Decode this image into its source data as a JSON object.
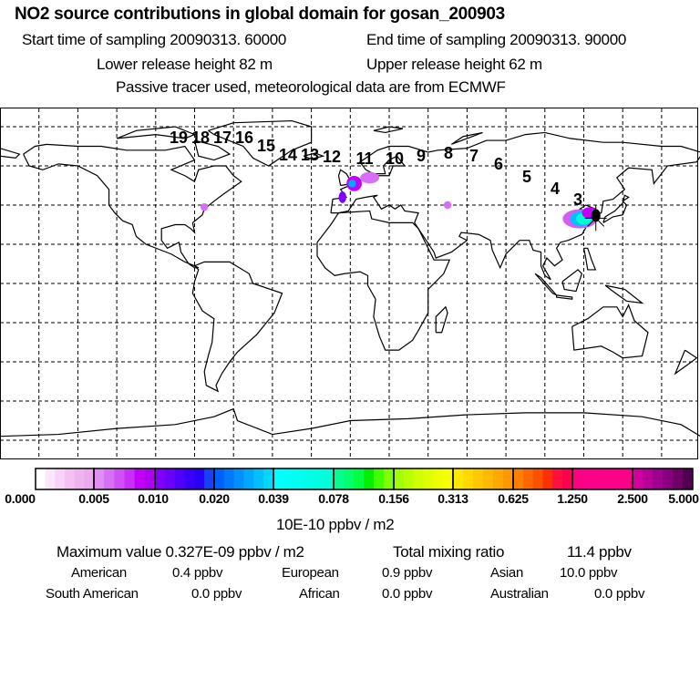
{
  "header": {
    "title": "NO2 source contributions in global domain for gosan_200903",
    "start_time": "Start time of sampling 20090313. 60000",
    "end_time": "End time of sampling 20090313. 90000",
    "lower_height": "Lower release height   82 m",
    "upper_height": "Upper release height   62 m",
    "note": "Passive tracer used, meteorological data are from ECMWF"
  },
  "map": {
    "trajectory_labels": [
      "19",
      "18",
      "17",
      "16",
      "15",
      "14",
      "13",
      "12",
      "11",
      "10",
      "9",
      "8",
      "7",
      "6",
      "5",
      "4",
      "3"
    ],
    "release_site": "gosan",
    "release_lonlat": [
      126.2,
      33.3
    ]
  },
  "colorbar": {
    "labels": [
      "0.000",
      "0.005",
      "0.010",
      "0.020",
      "0.039",
      "0.078",
      "0.156",
      "0.313",
      "0.625",
      "1.250",
      "2.500",
      "5.000"
    ],
    "unit": "10E-10 ppbv / m2",
    "colors": [
      [
        "#ffffff",
        "#fbe6fb",
        "#f7d4f7",
        "#f3c2f3",
        "#efb4f0",
        "#ebaaf0"
      ],
      [
        "#e08ef4",
        "#d770f4",
        "#cf50f6",
        "#c830f8",
        "#c000fa",
        "#b000f0"
      ],
      [
        "#8000ff",
        "#6a00ff",
        "#5000ff",
        "#3a00ff",
        "#2800f8",
        "#1840f8"
      ],
      [
        "#0060ff",
        "#0078ff",
        "#0090ff",
        "#00a8ff",
        "#00c0ff",
        "#00d8ff"
      ],
      [
        "#00ffff",
        "#00fff8",
        "#00fff0",
        "#00ffe8",
        "#00ffe0",
        "#00ffd8"
      ],
      [
        "#00ff90",
        "#00ff70",
        "#00ff40",
        "#00f000",
        "#40ff00",
        "#80ff00"
      ],
      [
        "#a0ff00",
        "#b8ff00",
        "#d0ff00",
        "#e0ff00",
        "#eeff00",
        "#f8ff00"
      ],
      [
        "#ffe800",
        "#ffd800",
        "#ffc800",
        "#ffb800",
        "#ffa800",
        "#ff9800"
      ],
      [
        "#ff8000",
        "#ff6800",
        "#ff5000",
        "#ff3000",
        "#ff1040",
        "#ff0050"
      ],
      [
        "#ff0080",
        "#ff0088",
        "#ff0088",
        "#ff0088",
        "#ff0088",
        "#ff0088"
      ],
      [
        "#d000a0",
        "#b80098",
        "#a00090",
        "#880080",
        "#700068",
        "#500050"
      ]
    ]
  },
  "stats": {
    "max_label": "Maximum value  0.327E-09 ppbv / m2",
    "total_label": "Total mixing ratio",
    "total_value": "11.4 ppbv",
    "regions": [
      {
        "name": "American",
        "value": "0.4 ppbv"
      },
      {
        "name": "European",
        "value": "0.9 ppbv"
      },
      {
        "name": "Asian",
        "value": "10.0 ppbv"
      },
      {
        "name": "South American",
        "value": "0.0 ppbv"
      },
      {
        "name": "African",
        "value": "0.0 ppbv"
      },
      {
        "name": "Australian",
        "value": "0.0 ppbv"
      }
    ]
  }
}
